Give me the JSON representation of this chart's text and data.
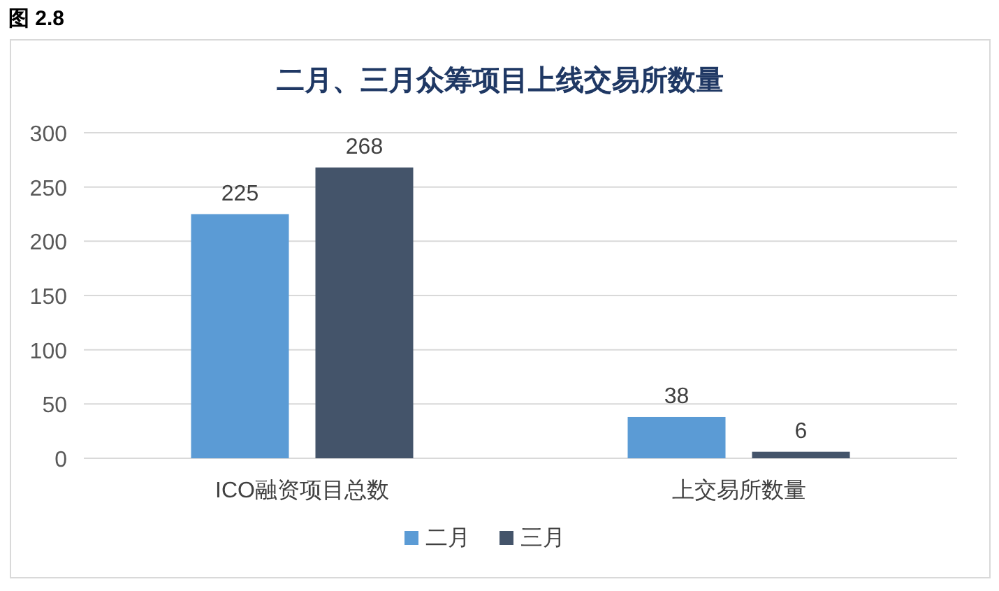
{
  "chart_data": {
    "type": "bar",
    "title": "二月、三月众筹项目上线交易所数量",
    "annotations": [
      "图 2.8"
    ],
    "categories": [
      "ICO融资项目总数",
      "上交易所数量"
    ],
    "series": [
      {
        "name": "二月",
        "color": "#5b9bd5",
        "values": [
          225,
          38
        ]
      },
      {
        "name": "三月",
        "color": "#44546a",
        "values": [
          268,
          6
        ]
      }
    ],
    "ylim": [
      0,
      300
    ],
    "yticks": [
      0,
      50,
      100,
      150,
      200,
      250,
      300
    ],
    "grid": "y",
    "legend": "bottom",
    "data_labels": true
  }
}
